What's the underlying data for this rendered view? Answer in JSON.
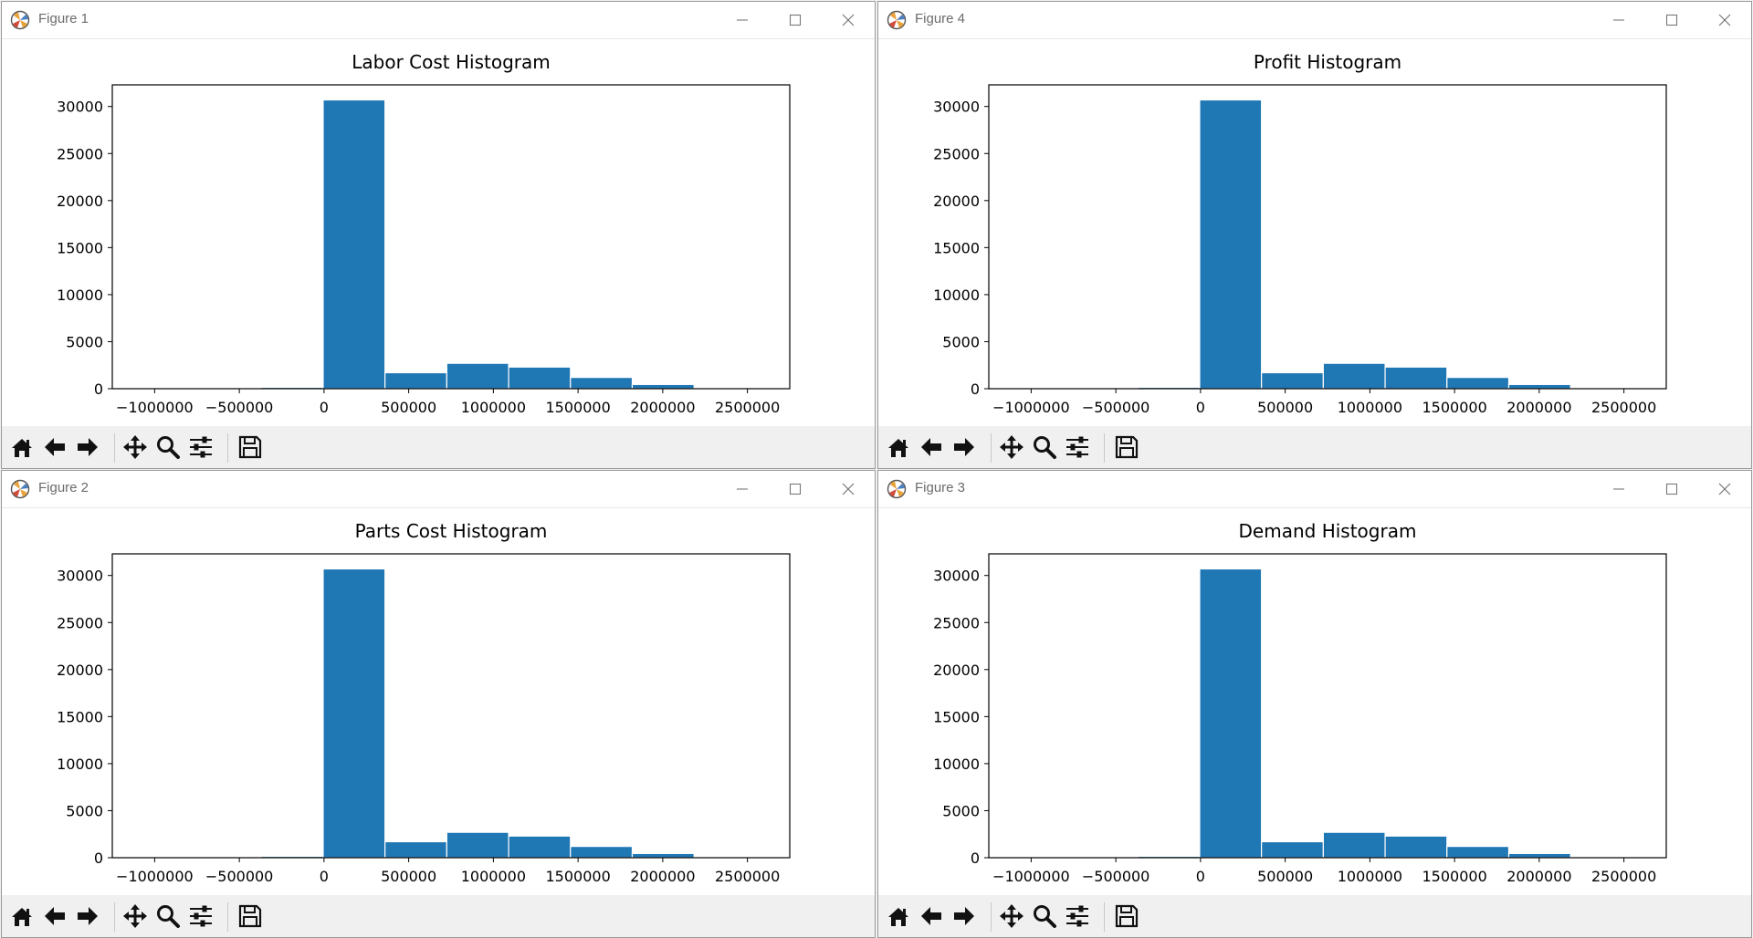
{
  "windows": [
    {
      "title": "Figure 1",
      "chart_title": "Labor Cost Histogram"
    },
    {
      "title": "Figure 4",
      "chart_title": "Profit Histogram"
    },
    {
      "title": "Figure 2",
      "chart_title": "Parts Cost Histogram"
    },
    {
      "title": "Figure 3",
      "chart_title": "Demand Histogram"
    }
  ],
  "toolbar": {
    "icons": [
      "home-icon",
      "back-arrow-icon",
      "forward-arrow-icon",
      "pan-icon",
      "zoom-icon",
      "configure-subplots-icon",
      "save-icon"
    ]
  },
  "colors": {
    "bar": "#1f77b4",
    "accent_icon": "#e8a33c"
  },
  "chart_data": [
    {
      "type": "bar",
      "title": "Labor Cost Histogram",
      "xlim": [
        -1250000,
        2750000
      ],
      "ylim": [
        0,
        32300
      ],
      "x_ticks": [
        -1000000,
        -500000,
        0,
        500000,
        1000000,
        1500000,
        2000000,
        2500000
      ],
      "x_tick_labels": [
        "−1000000",
        "−500000",
        "0",
        "500000",
        "1000000",
        "1500000",
        "2000000",
        "2500000"
      ],
      "y_ticks": [
        0,
        5000,
        10000,
        15000,
        20000,
        25000,
        30000
      ],
      "y_tick_labels": [
        "0",
        "5000",
        "10000",
        "15000",
        "20000",
        "25000",
        "30000"
      ],
      "bin_edges": [
        -1100000,
        -735000,
        -370000,
        -5000,
        360000,
        725000,
        1090000,
        1455000,
        1820000,
        2185000,
        2550000
      ],
      "values": [
        10,
        30,
        150,
        30700,
        1700,
        2700,
        2300,
        1200,
        450,
        20
      ]
    },
    {
      "type": "bar",
      "title": "Profit Histogram",
      "xlim": [
        -1250000,
        2750000
      ],
      "ylim": [
        0,
        32300
      ],
      "x_ticks": [
        -1000000,
        -500000,
        0,
        500000,
        1000000,
        1500000,
        2000000,
        2500000
      ],
      "x_tick_labels": [
        "−1000000",
        "−500000",
        "0",
        "500000",
        "1000000",
        "1500000",
        "2000000",
        "2500000"
      ],
      "y_ticks": [
        0,
        5000,
        10000,
        15000,
        20000,
        25000,
        30000
      ],
      "y_tick_labels": [
        "0",
        "5000",
        "10000",
        "15000",
        "20000",
        "25000",
        "30000"
      ],
      "bin_edges": [
        -1100000,
        -735000,
        -370000,
        -5000,
        360000,
        725000,
        1090000,
        1455000,
        1820000,
        2185000,
        2550000
      ],
      "values": [
        10,
        30,
        150,
        30700,
        1700,
        2700,
        2300,
        1200,
        450,
        20
      ]
    },
    {
      "type": "bar",
      "title": "Parts Cost Histogram",
      "xlim": [
        -1250000,
        2750000
      ],
      "ylim": [
        0,
        32300
      ],
      "x_ticks": [
        -1000000,
        -500000,
        0,
        500000,
        1000000,
        1500000,
        2000000,
        2500000
      ],
      "x_tick_labels": [
        "−1000000",
        "−500000",
        "0",
        "500000",
        "1000000",
        "1500000",
        "2000000",
        "2500000"
      ],
      "y_ticks": [
        0,
        5000,
        10000,
        15000,
        20000,
        25000,
        30000
      ],
      "y_tick_labels": [
        "0",
        "5000",
        "10000",
        "15000",
        "20000",
        "25000",
        "30000"
      ],
      "bin_edges": [
        -1100000,
        -735000,
        -370000,
        -5000,
        360000,
        725000,
        1090000,
        1455000,
        1820000,
        2185000,
        2550000
      ],
      "values": [
        10,
        30,
        150,
        30700,
        1700,
        2700,
        2300,
        1200,
        450,
        20
      ]
    },
    {
      "type": "bar",
      "title": "Demand Histogram",
      "xlim": [
        -1250000,
        2750000
      ],
      "ylim": [
        0,
        32300
      ],
      "x_ticks": [
        -1000000,
        -500000,
        0,
        500000,
        1000000,
        1500000,
        2000000,
        2500000
      ],
      "x_tick_labels": [
        "−1000000",
        "−500000",
        "0",
        "500000",
        "1000000",
        "1500000",
        "2000000",
        "2500000"
      ],
      "y_ticks": [
        0,
        5000,
        10000,
        15000,
        20000,
        25000,
        30000
      ],
      "y_tick_labels": [
        "0",
        "5000",
        "10000",
        "15000",
        "20000",
        "25000",
        "30000"
      ],
      "bin_edges": [
        -1100000,
        -735000,
        -370000,
        -5000,
        360000,
        725000,
        1090000,
        1455000,
        1820000,
        2185000,
        2550000
      ],
      "values": [
        10,
        30,
        150,
        30700,
        1700,
        2700,
        2300,
        1200,
        450,
        20
      ]
    }
  ]
}
